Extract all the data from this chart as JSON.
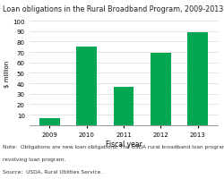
{
  "title": "Loan obligations in the Rural Broadband Program, 2009-2013",
  "ylabel": "$ million",
  "xlabel": "Fiscal year",
  "categories": [
    "2009",
    "2010",
    "2011",
    "2012",
    "2013"
  ],
  "values": [
    7,
    75,
    37,
    69,
    89
  ],
  "bar_color": "#00a651",
  "ylim": [
    0,
    100
  ],
  "yticks": [
    0,
    10,
    20,
    30,
    40,
    50,
    60,
    70,
    80,
    90,
    100
  ],
  "background_color": "#ffffff",
  "note_line1": "Note:  Obligations are new loan obligations. The USDA rural broadband loan program is a",
  "note_line2": "revolving loan program.",
  "source_line": "Source:  USDA, Rural Utilities Service.",
  "title_fontsize": 5.8,
  "ylabel_fontsize": 5.0,
  "xlabel_fontsize": 5.5,
  "tick_fontsize": 5.0,
  "note_fontsize": 4.2
}
